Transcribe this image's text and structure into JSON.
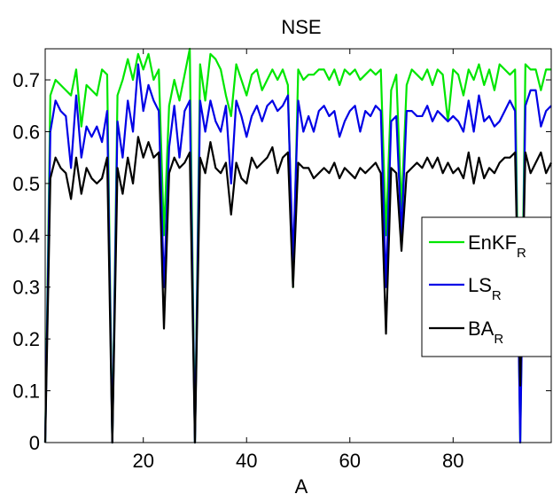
{
  "chart_data": {
    "type": "line",
    "title": "NSE",
    "xlabel": "A",
    "ylabel": "",
    "xlim": [
      1,
      99
    ],
    "ylim": [
      0,
      0.76
    ],
    "xticks": [
      20,
      40,
      60,
      80
    ],
    "yticks": [
      0,
      0.1,
      0.2,
      0.3,
      0.4,
      0.5,
      0.6,
      0.7
    ],
    "ytick_labels": [
      "0",
      "0.1",
      "0.2",
      "0.3",
      "0.4",
      "0.5",
      "0.6",
      "0.7"
    ],
    "xtick_labels": [
      "20",
      "40",
      "60",
      "80"
    ],
    "grid": false,
    "legend_position": "right",
    "x_start": 1,
    "series": [
      {
        "name": "EnKF",
        "name_sub": "R",
        "color": "#00e600",
        "values": [
          0.0,
          0.67,
          0.7,
          0.69,
          0.68,
          0.67,
          0.72,
          0.61,
          0.69,
          0.68,
          0.67,
          0.72,
          0.71,
          0.0,
          0.67,
          0.7,
          0.74,
          0.7,
          0.75,
          0.72,
          0.75,
          0.7,
          0.72,
          0.4,
          0.65,
          0.7,
          0.66,
          0.71,
          0.76,
          0.0,
          0.73,
          0.66,
          0.75,
          0.74,
          0.72,
          0.67,
          0.63,
          0.73,
          0.7,
          0.67,
          0.71,
          0.72,
          0.68,
          0.7,
          0.72,
          0.7,
          0.72,
          0.69,
          0.3,
          0.72,
          0.7,
          0.71,
          0.71,
          0.72,
          0.72,
          0.7,
          0.72,
          0.69,
          0.72,
          0.71,
          0.72,
          0.7,
          0.71,
          0.72,
          0.71,
          0.72,
          0.4,
          0.68,
          0.71,
          0.45,
          0.69,
          0.72,
          0.71,
          0.7,
          0.72,
          0.69,
          0.72,
          0.71,
          0.62,
          0.72,
          0.71,
          0.67,
          0.72,
          0.7,
          0.73,
          0.69,
          0.72,
          0.68,
          0.73,
          0.72,
          0.71,
          0.72,
          0.0,
          0.73,
          0.72,
          0.72,
          0.68,
          0.72,
          0.72
        ]
      },
      {
        "name": "LS",
        "name_sub": "R",
        "color": "#0000e6",
        "values": [
          0.0,
          0.6,
          0.66,
          0.64,
          0.63,
          0.53,
          0.67,
          0.55,
          0.61,
          0.59,
          0.61,
          0.58,
          0.64,
          0.0,
          0.62,
          0.55,
          0.66,
          0.6,
          0.73,
          0.64,
          0.69,
          0.66,
          0.64,
          0.3,
          0.57,
          0.65,
          0.55,
          0.64,
          0.66,
          0.0,
          0.66,
          0.6,
          0.66,
          0.62,
          0.6,
          0.65,
          0.5,
          0.66,
          0.63,
          0.59,
          0.63,
          0.65,
          0.62,
          0.65,
          0.66,
          0.64,
          0.65,
          0.67,
          0.35,
          0.66,
          0.6,
          0.63,
          0.6,
          0.64,
          0.65,
          0.63,
          0.64,
          0.59,
          0.62,
          0.64,
          0.65,
          0.6,
          0.64,
          0.63,
          0.65,
          0.64,
          0.3,
          0.62,
          0.63,
          0.4,
          0.64,
          0.64,
          0.63,
          0.63,
          0.65,
          0.62,
          0.64,
          0.63,
          0.62,
          0.63,
          0.62,
          0.6,
          0.66,
          0.6,
          0.67,
          0.62,
          0.63,
          0.61,
          0.62,
          0.64,
          0.66,
          0.64,
          0.0,
          0.65,
          0.68,
          0.68,
          0.61,
          0.64,
          0.65
        ]
      },
      {
        "name": "BA",
        "name_sub": "R",
        "color": "#000000",
        "values": [
          0.0,
          0.51,
          0.55,
          0.53,
          0.52,
          0.47,
          0.55,
          0.48,
          0.53,
          0.51,
          0.5,
          0.51,
          0.55,
          0.0,
          0.53,
          0.48,
          0.55,
          0.5,
          0.59,
          0.55,
          0.58,
          0.55,
          0.56,
          0.22,
          0.52,
          0.55,
          0.53,
          0.54,
          0.56,
          0.0,
          0.55,
          0.52,
          0.58,
          0.53,
          0.52,
          0.54,
          0.44,
          0.54,
          0.51,
          0.5,
          0.55,
          0.53,
          0.54,
          0.55,
          0.57,
          0.52,
          0.55,
          0.56,
          0.3,
          0.54,
          0.53,
          0.53,
          0.51,
          0.52,
          0.53,
          0.52,
          0.54,
          0.51,
          0.53,
          0.52,
          0.51,
          0.53,
          0.52,
          0.53,
          0.54,
          0.52,
          0.21,
          0.53,
          0.52,
          0.37,
          0.52,
          0.53,
          0.54,
          0.53,
          0.55,
          0.53,
          0.55,
          0.52,
          0.54,
          0.52,
          0.53,
          0.51,
          0.56,
          0.5,
          0.55,
          0.51,
          0.53,
          0.52,
          0.54,
          0.55,
          0.55,
          0.56,
          0.11,
          0.56,
          0.52,
          0.54,
          0.56,
          0.52,
          0.54
        ]
      }
    ]
  }
}
